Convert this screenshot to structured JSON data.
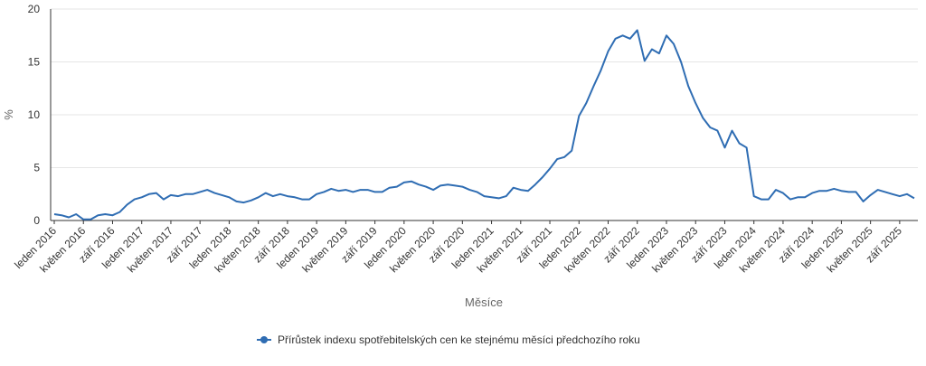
{
  "chart_data": {
    "type": "line",
    "xlabel": "Měsíce",
    "ylabel": "%",
    "ylim": [
      0,
      20
    ],
    "yticks": [
      0,
      5,
      10,
      15,
      20
    ],
    "grid": "horizontal",
    "legend_position": "bottom-center",
    "tick_labels_every": 4,
    "line_color": "#2f6db3",
    "x": [
      "leden 2016",
      "únor 2016",
      "březen 2016",
      "duben 2016",
      "květen 2016",
      "červen 2016",
      "červenec 2016",
      "srpen 2016",
      "září 2016",
      "říjen 2016",
      "listopad 2016",
      "prosinec 2016",
      "leden 2017",
      "únor 2017",
      "březen 2017",
      "duben 2017",
      "květen 2017",
      "červen 2017",
      "červenec 2017",
      "srpen 2017",
      "září 2017",
      "říjen 2017",
      "listopad 2017",
      "prosinec 2017",
      "leden 2018",
      "únor 2018",
      "březen 2018",
      "duben 2018",
      "květen 2018",
      "červen 2018",
      "červenec 2018",
      "srpen 2018",
      "září 2018",
      "říjen 2018",
      "listopad 2018",
      "prosinec 2018",
      "leden 2019",
      "únor 2019",
      "březen 2019",
      "duben 2019",
      "květen 2019",
      "červen 2019",
      "červenec 2019",
      "srpen 2019",
      "září 2019",
      "říjen 2019",
      "listopad 2019",
      "prosinec 2019",
      "leden 2020",
      "únor 2020",
      "březen 2020",
      "duben 2020",
      "květen 2020",
      "červen 2020",
      "červenec 2020",
      "srpen 2020",
      "září 2020",
      "říjen 2020",
      "listopad 2020",
      "prosinec 2020",
      "leden 2021",
      "únor 2021",
      "březen 2021",
      "duben 2021",
      "květen 2021",
      "červen 2021",
      "červenec 2021",
      "srpen 2021",
      "září 2021",
      "říjen 2021",
      "listopad 2021",
      "prosinec 2021",
      "leden 2022",
      "únor 2022",
      "březen 2022",
      "duben 2022",
      "květen 2022",
      "červen 2022",
      "červenec 2022",
      "srpen 2022",
      "září 2022",
      "říjen 2022",
      "listopad 2022",
      "prosinec 2022",
      "leden 2023",
      "únor 2023",
      "březen 2023",
      "duben 2023",
      "květen 2023",
      "červen 2023",
      "červenec 2023",
      "srpen 2023",
      "září 2023",
      "říjen 2023",
      "listopad 2023",
      "prosinec 2023",
      "leden 2024",
      "únor 2024",
      "březen 2024",
      "duben 2024",
      "květen 2024",
      "červen 2024",
      "červenec 2024",
      "srpen 2024",
      "září 2024",
      "říjen 2024",
      "listopad 2024",
      "prosinec 2024",
      "leden 2025",
      "únor 2025",
      "březen 2025",
      "duben 2025",
      "květen 2025",
      "červen 2025",
      "červenec 2025",
      "srpen 2025",
      "září 2025",
      "říjen 2025",
      "listopad 2025"
    ],
    "series": [
      {
        "name": "Přírůstek indexu spotřebitelských cen ke stejnému měsíci předchozího roku",
        "values": [
          0.6,
          0.5,
          0.3,
          0.6,
          0.1,
          0.1,
          0.5,
          0.6,
          0.5,
          0.8,
          1.5,
          2.0,
          2.2,
          2.5,
          2.6,
          2.0,
          2.4,
          2.3,
          2.5,
          2.5,
          2.7,
          2.9,
          2.6,
          2.4,
          2.2,
          1.8,
          1.7,
          1.9,
          2.2,
          2.6,
          2.3,
          2.5,
          2.3,
          2.2,
          2.0,
          2.0,
          2.5,
          2.7,
          3.0,
          2.8,
          2.9,
          2.7,
          2.9,
          2.9,
          2.7,
          2.7,
          3.1,
          3.2,
          3.6,
          3.7,
          3.4,
          3.2,
          2.9,
          3.3,
          3.4,
          3.3,
          3.2,
          2.9,
          2.7,
          2.3,
          2.2,
          2.1,
          2.3,
          3.1,
          2.9,
          2.8,
          3.4,
          4.1,
          4.9,
          5.8,
          6.0,
          6.6,
          9.9,
          11.1,
          12.7,
          14.2,
          16.0,
          17.2,
          17.5,
          17.2,
          18.0,
          15.1,
          16.2,
          15.8,
          17.5,
          16.7,
          15.0,
          12.7,
          11.1,
          9.7,
          8.8,
          8.5,
          6.9,
          8.5,
          7.3,
          6.9,
          2.3,
          2.0,
          2.0,
          2.9,
          2.6,
          2.0,
          2.2,
          2.2,
          2.6,
          2.8,
          2.8,
          3.0,
          2.8,
          2.7,
          2.7,
          1.8,
          2.4,
          2.9,
          2.7,
          2.5,
          2.3,
          2.5,
          2.1
        ]
      }
    ]
  }
}
